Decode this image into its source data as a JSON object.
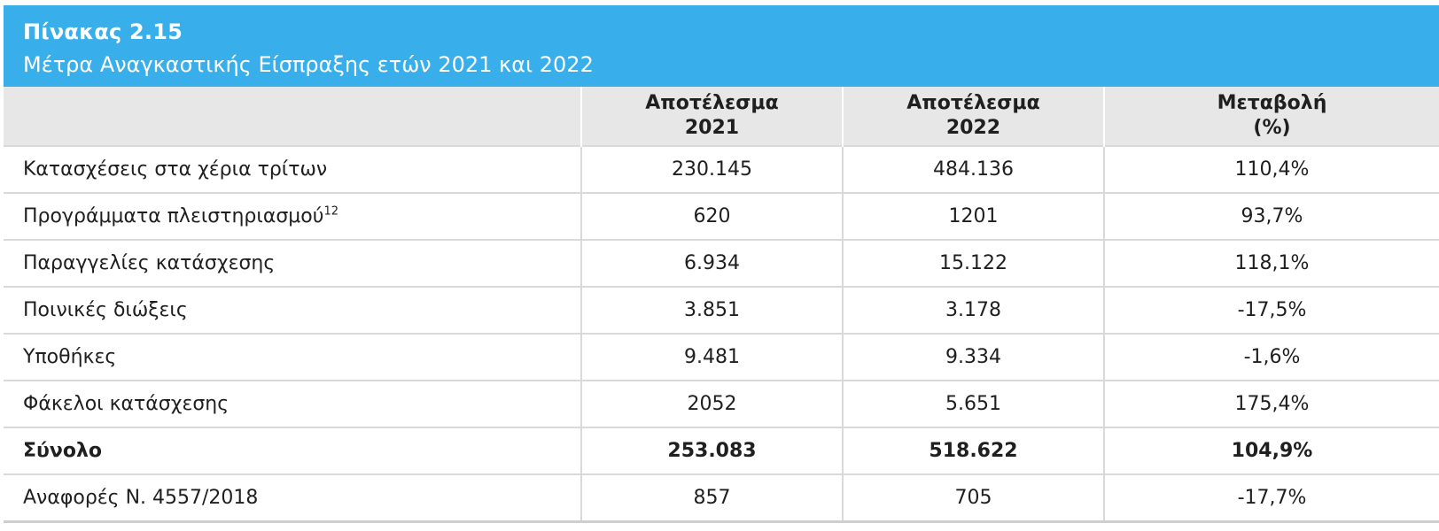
{
  "table": {
    "title": "Πίνακας 2.15",
    "subtitle": "Μέτρα Αναγκαστικής Είσπραξης ετών 2021 και 2022",
    "columns": {
      "label": "",
      "col2021_line1": "Αποτέλεσμα",
      "col2021_line2": "2021",
      "col2022_line1": "Αποτέλεσμα",
      "col2022_line2": "2022",
      "change_line1": "Μεταβολή",
      "change_line2": "(%)"
    },
    "rows": [
      {
        "label": "Κατασχέσεις στα χέρια τρίτων",
        "footnote": "",
        "v2021": "230.145",
        "v2022": "484.136",
        "change": "110,4%"
      },
      {
        "label": "Προγράμματα πλειστηριασμού",
        "footnote": "12",
        "v2021": "620",
        "v2022": "1201",
        "change": "93,7%"
      },
      {
        "label": "Παραγγελίες κατάσχεσης",
        "footnote": "",
        "v2021": "6.934",
        "v2022": "15.122",
        "change": "118,1%"
      },
      {
        "label": "Ποινικές διώξεις",
        "footnote": "",
        "v2021": "3.851",
        "v2022": "3.178",
        "change": "-17,5%"
      },
      {
        "label": "Υποθήκες",
        "footnote": "",
        "v2021": "9.481",
        "v2022": "9.334",
        "change": "-1,6%"
      },
      {
        "label": "Φάκελοι κατάσχεσης",
        "footnote": "",
        "v2021": "2052",
        "v2022": "5.651",
        "change": "175,4%"
      },
      {
        "label": "Σύνολο",
        "footnote": "",
        "v2021": "253.083",
        "v2022": "518.622",
        "change": "104,9%"
      },
      {
        "label": "Αναφορές Ν. 4557/2018",
        "footnote": "",
        "v2021": "857",
        "v2022": "705",
        "change": "-17,7%"
      }
    ]
  },
  "colors": {
    "header_band": "#38aeeb",
    "column_header_bg": "#e7e7e7",
    "grid_lines": "#d9d9d9"
  }
}
